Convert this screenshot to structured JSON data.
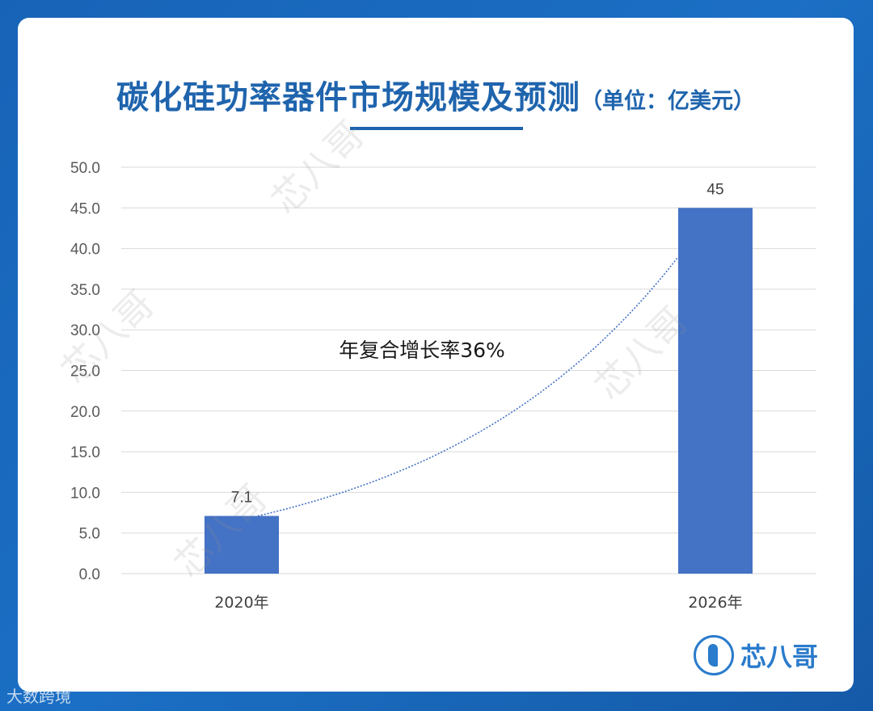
{
  "title": {
    "main": "碳化硅功率器件市场规模及预测",
    "unit": "（单位：亿美元）"
  },
  "chart_data": {
    "type": "bar",
    "categories": [
      "2020年",
      "2026年"
    ],
    "values": [
      7.1,
      45
    ],
    "value_labels": [
      "7.1",
      "45"
    ],
    "ylim": [
      0,
      50
    ],
    "yticks": [
      "0.0",
      "5.0",
      "10.0",
      "15.0",
      "20.0",
      "25.0",
      "30.0",
      "35.0",
      "40.0",
      "45.0",
      "50.0"
    ],
    "grid": true,
    "trendline": "exponential",
    "annotation": "年复合增长率36%",
    "bar_color": "#4472c4",
    "trend_color": "#4472c4",
    "grid_color": "#d9d9d9"
  },
  "logo": {
    "text": "芯八哥",
    "icon": "bird-logo-icon"
  },
  "watermark_text": "芯八哥",
  "corner_mark": "大数跨境"
}
